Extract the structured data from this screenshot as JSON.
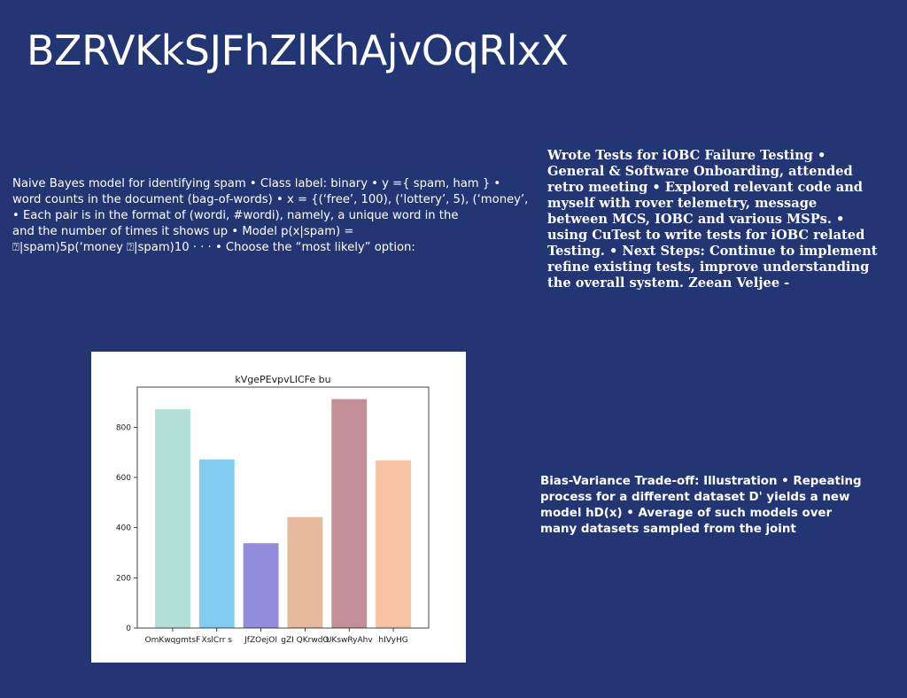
{
  "slide": {
    "title": "BZRVKkSJFhZlKhAjvOqRlxX"
  },
  "left_text": {
    "lines": [
      "Naive Bayes model for identifying spam • Class label: binary • y ={ spam, ham } •",
      "word counts in the document (bag-of-words) • x = {(‘free’, 100), (‘lottery’, 5), (‘money’,",
      "• Each pair is in the format of (wordi, #wordi), namely, a unique word in the",
      "and the number of times it shows up • Model p(x|spam) =",
      "⍰|spam)5p(‘money ⍰|spam)10 · · · • Choose the “most likely” option:"
    ]
  },
  "right_top_text": {
    "lines": [
      "Wrote Tests for iOBC Failure Testing •",
      "General & Software Onboarding, attended",
      "retro meeting • Explored relevant code and",
      "myself with rover telemetry, message",
      "between MCS, IOBC and various MSPs. •",
      "using CuTest to write tests for iOBC related",
      "Testing. • Next Steps: Continue to implement",
      "refine existing tests, improve understanding",
      "the overall system. Zeean Veljee -"
    ]
  },
  "right_bottom_text": {
    "lines": [
      "Bias-Variance Trade-off: Illustration • Repeating",
      "process for a different dataset D' yields a new",
      "model hD(x) • Average of such models over",
      "many datasets sampled from the joint"
    ]
  },
  "chart_data": {
    "type": "bar",
    "title": "kVgePEvpvLICFe bu",
    "categories": [
      "OmKwqgmtsF",
      "XslCrr s",
      "JfZOejOI",
      "gZI QKrwdO",
      "UKswRyAhv",
      "hIVyHG"
    ],
    "values": [
      872,
      672,
      338,
      442,
      912,
      668
    ],
    "colors": [
      "#b3e0d6",
      "#81cdf2",
      "#938bdb",
      "#e5b99c",
      "#c48e96",
      "#f8c3a2"
    ],
    "ylim": [
      0,
      960
    ],
    "yticks": [
      0,
      200,
      400,
      600,
      800
    ],
    "xlabel": "",
    "ylabel": "",
    "grid": false
  }
}
